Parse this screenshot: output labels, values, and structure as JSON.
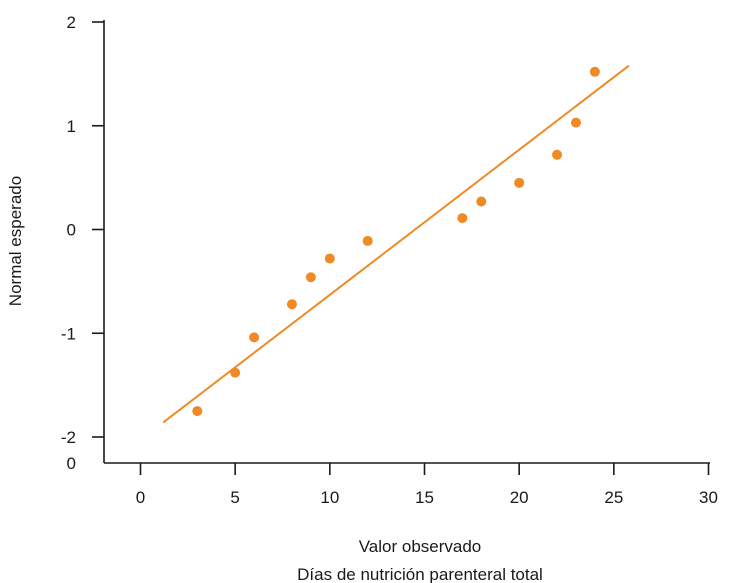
{
  "chart_data": {
    "type": "scatter",
    "title": "",
    "xlabel": "Valor observado",
    "xlabel_sub": "Días de nutrición parenteral total",
    "ylabel": "Normal esperado",
    "xlim": [
      -2,
      30
    ],
    "ylim": [
      -2.2,
      2
    ],
    "x_ticks": [
      0,
      5,
      10,
      15,
      20,
      25,
      30
    ],
    "x_tick_labels": [
      "0",
      "5",
      "10",
      "15",
      "20",
      "25",
      "30"
    ],
    "y_ticks": [
      -2,
      -1,
      0,
      1,
      2
    ],
    "y_tick_labels": [
      "-2",
      "-1",
      "0",
      "1",
      "2"
    ],
    "origin_label": "0",
    "grid": false,
    "legend": "none",
    "marker_color": "#f08a24",
    "line_color": "#f08a24",
    "series": [
      {
        "type": "scatter",
        "points": [
          {
            "x": 3,
            "y": -1.75
          },
          {
            "x": 5,
            "y": -1.38
          },
          {
            "x": 6,
            "y": -1.04
          },
          {
            "x": 8,
            "y": -0.72
          },
          {
            "x": 9,
            "y": -0.46
          },
          {
            "x": 10,
            "y": -0.28
          },
          {
            "x": 12,
            "y": -0.11
          },
          {
            "x": 17,
            "y": 0.11
          },
          {
            "x": 18,
            "y": 0.27
          },
          {
            "x": 20,
            "y": 0.45
          },
          {
            "x": 22,
            "y": 0.72
          },
          {
            "x": 23,
            "y": 1.03
          },
          {
            "x": 24,
            "y": 1.52
          }
        ]
      },
      {
        "type": "line",
        "points": [
          {
            "x": 1.2,
            "y": -1.86
          },
          {
            "x": 25.8,
            "y": 1.58
          }
        ]
      }
    ]
  }
}
